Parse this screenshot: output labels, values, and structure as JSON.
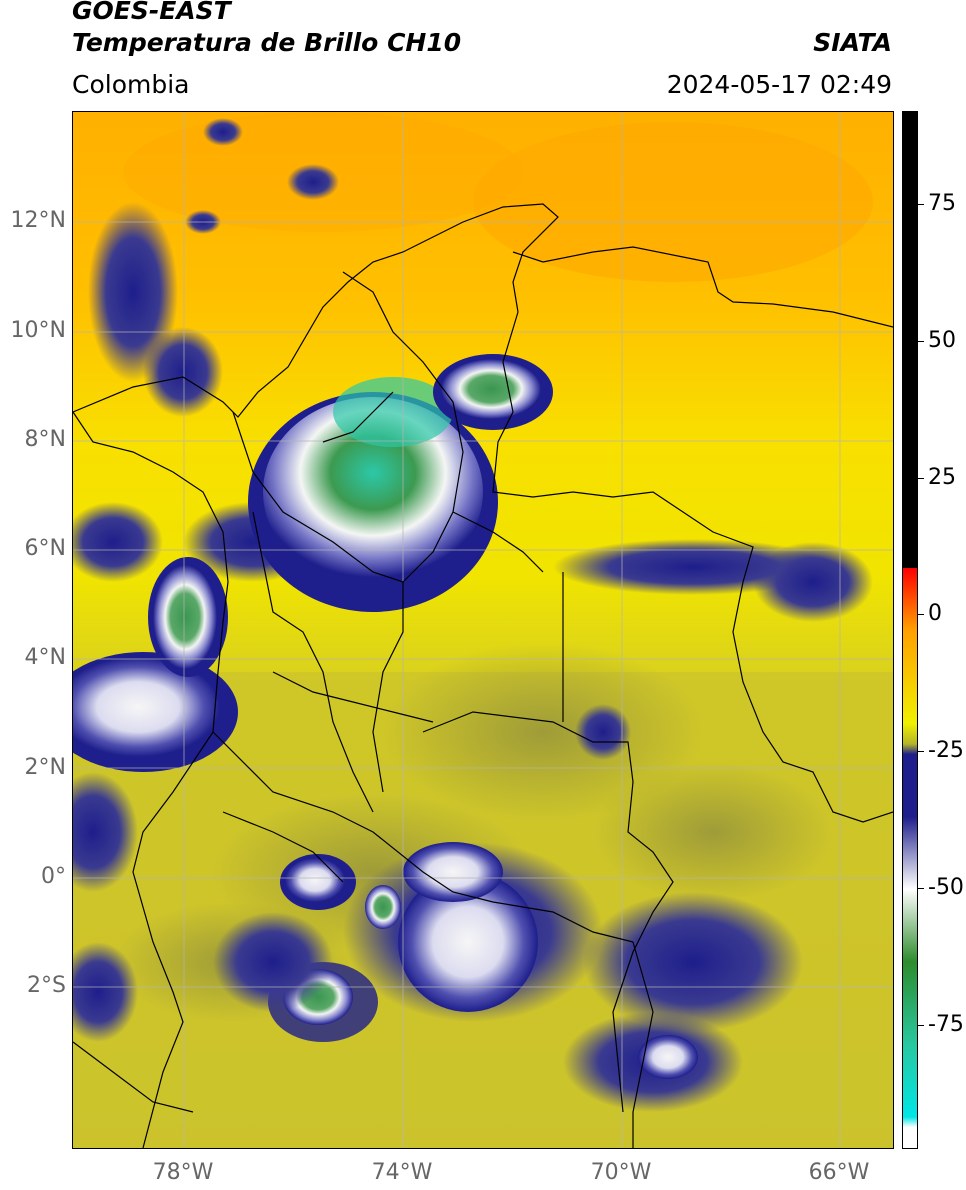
{
  "header": {
    "title_line1": "GOES-EAST",
    "title_line2": "Temperatura de Brillo CH10",
    "organization": "SIATA",
    "region": "Colombia",
    "timestamp": "2024-05-17 02:49"
  },
  "map": {
    "lat_labels": [
      "12°N",
      "10°N",
      "8°N",
      "6°N",
      "4°N",
      "2°N",
      "0°",
      "2°S"
    ],
    "lon_labels": [
      "78°W",
      "74°W",
      "70°W",
      "66°W"
    ],
    "colors": {
      "warm_orange": "#ffb400",
      "yellow": "#f0e000",
      "olive": "#c8c030",
      "navy": "#1e1e8c",
      "white_cloud": "#f4f6f4",
      "green_core": "#3c9a50",
      "teal_core": "#2cc8a8",
      "border_line": "#000000",
      "grid_line": "#b4b4b4"
    }
  },
  "colorbar": {
    "labels": [
      "75",
      "50",
      "25",
      "0",
      "-25",
      "-50",
      "-75"
    ],
    "colors": [
      "#000000",
      "#ff0000",
      "#ffa000",
      "#f0f000",
      "#b4b428",
      "#1e1e8c",
      "#ffffff",
      "#2d8c2d",
      "#28c8a0",
      "#00e6e6"
    ]
  }
}
